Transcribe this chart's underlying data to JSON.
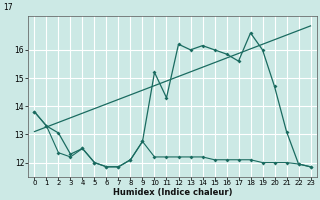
{
  "xlabel": "Humidex (Indice chaleur)",
  "background_color": "#cce9e5",
  "grid_color": "#ffffff",
  "line_color": "#1a6b60",
  "x_ticks": [
    0,
    1,
    2,
    3,
    4,
    5,
    6,
    7,
    8,
    9,
    10,
    11,
    12,
    13,
    14,
    15,
    16,
    17,
    18,
    19,
    20,
    21,
    22,
    23
  ],
  "xlim": [
    -0.5,
    23.5
  ],
  "ylim": [
    11.5,
    17.2
  ],
  "y_ticks": [
    12,
    13,
    14,
    15,
    16
  ],
  "series_zigzag": {
    "x": [
      0,
      1,
      2,
      3,
      4,
      5,
      6,
      7,
      8,
      9,
      10,
      11,
      12,
      13,
      14,
      15,
      16,
      17,
      18,
      19,
      20,
      21,
      22,
      23
    ],
    "y": [
      13.8,
      13.3,
      13.05,
      12.3,
      12.5,
      12.0,
      11.85,
      11.85,
      12.1,
      12.75,
      15.2,
      14.3,
      16.2,
      16.0,
      16.15,
      16.0,
      15.85,
      15.6,
      16.6,
      16.0,
      14.7,
      13.1,
      11.95,
      11.85
    ]
  },
  "series_trend": {
    "x": [
      0,
      23
    ],
    "y": [
      13.1,
      16.85
    ]
  },
  "series_low": {
    "x": [
      0,
      1,
      2,
      3,
      4,
      5,
      6,
      7,
      8,
      9,
      10,
      11,
      12,
      13,
      14,
      15,
      16,
      17,
      18,
      19,
      20,
      21,
      22,
      23
    ],
    "y": [
      13.8,
      13.3,
      12.35,
      12.2,
      12.5,
      12.0,
      11.85,
      11.85,
      12.1,
      12.75,
      12.2,
      12.2,
      12.2,
      12.2,
      12.2,
      12.1,
      12.1,
      12.1,
      12.1,
      12.0,
      12.0,
      12.0,
      11.95,
      11.85
    ]
  }
}
